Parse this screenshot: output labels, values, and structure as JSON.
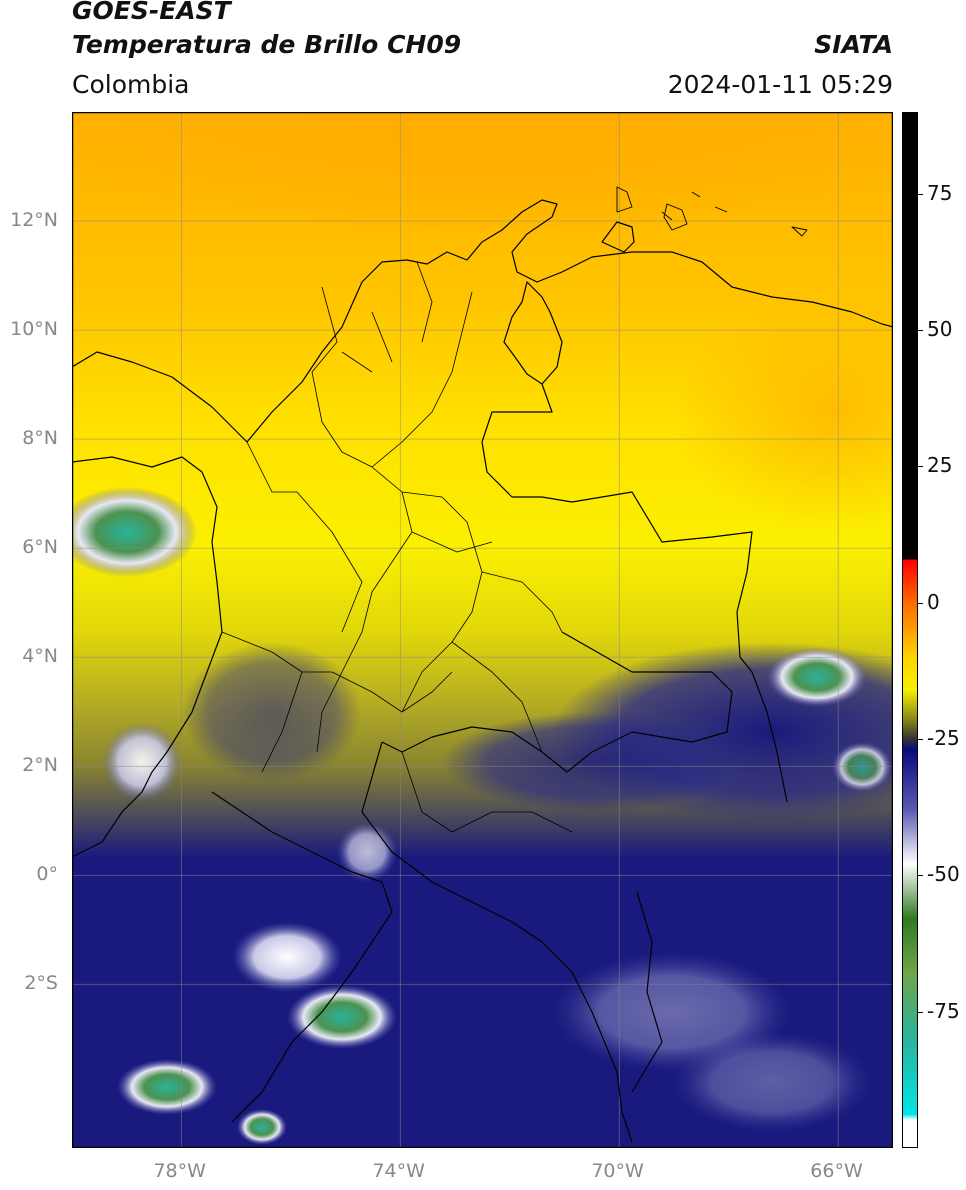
{
  "header": {
    "title_line1": "GOES-EAST",
    "title_line2": "Temperatura de Brillo CH09",
    "brand": "SIATA",
    "region": "Colombia",
    "datetime": "2024-01-11 05:29"
  },
  "map": {
    "lon_range": [
      -80,
      -65
    ],
    "lat_range": [
      -5,
      14
    ],
    "lat_ticks": [
      {
        "value": 12,
        "label": "12°N"
      },
      {
        "value": 10,
        "label": "10°N"
      },
      {
        "value": 8,
        "label": "8°N"
      },
      {
        "value": 6,
        "label": "6°N"
      },
      {
        "value": 4,
        "label": "4°N"
      },
      {
        "value": 2,
        "label": "2°N"
      },
      {
        "value": 0,
        "label": "0°"
      },
      {
        "value": -2,
        "label": "2°S"
      }
    ],
    "lon_ticks": [
      {
        "value": -78,
        "label": "78°W"
      },
      {
        "value": -74,
        "label": "74°W"
      },
      {
        "value": -70,
        "label": "70°W"
      },
      {
        "value": -66,
        "label": "66°W"
      }
    ],
    "grid": true
  },
  "colorbar": {
    "range": [
      -100,
      90
    ],
    "ticks": [
      {
        "value": 75,
        "label": "75"
      },
      {
        "value": 50,
        "label": "50"
      },
      {
        "value": 25,
        "label": "25"
      },
      {
        "value": 0,
        "label": "0"
      },
      {
        "value": -25,
        "label": "-25"
      },
      {
        "value": -50,
        "label": "-50"
      },
      {
        "value": -75,
        "label": "-75"
      }
    ],
    "stops": [
      {
        "value": 90,
        "color": "#000000"
      },
      {
        "value": 8,
        "color": "#000000"
      },
      {
        "value": 7.9,
        "color": "#ff0000"
      },
      {
        "value": 0,
        "color": "#ff6a00"
      },
      {
        "value": -10,
        "color": "#ffd400"
      },
      {
        "value": -16,
        "color": "#f4f000"
      },
      {
        "value": -22,
        "color": "#7d7a20"
      },
      {
        "value": -25,
        "color": "#333333"
      },
      {
        "value": -27,
        "color": "#0a0a80"
      },
      {
        "value": -38,
        "color": "#5a5ab0"
      },
      {
        "value": -48,
        "color": "#ffffff"
      },
      {
        "value": -58,
        "color": "#2f7a22"
      },
      {
        "value": -68,
        "color": "#6ea64b"
      },
      {
        "value": -80,
        "color": "#2ab39a"
      },
      {
        "value": -94,
        "color": "#00e5e5"
      },
      {
        "value": -95,
        "color": "#ffffff"
      },
      {
        "value": -100,
        "color": "#ffffff"
      }
    ],
    "colors": {
      "warm_orange": "#ffb000",
      "yellow": "#ffee00",
      "olive": "#b5ad23",
      "navy": "#1a1a7e",
      "cloud_white": "#e8e8f4",
      "cloud_green": "#4c9250",
      "border": "#000000"
    }
  }
}
